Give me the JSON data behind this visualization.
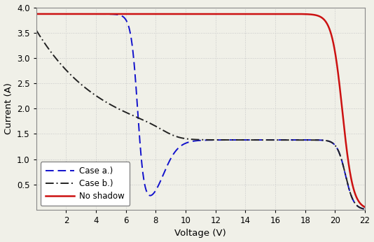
{
  "title": "",
  "xlabel": "Voltage (V)",
  "ylabel": "Current (A)",
  "xlim": [
    0,
    22
  ],
  "ylim": [
    0,
    4
  ],
  "xticks": [
    2,
    4,
    6,
    8,
    10,
    12,
    14,
    16,
    18,
    20,
    22
  ],
  "yticks": [
    0.5,
    1.0,
    1.5,
    2.0,
    2.5,
    3.0,
    3.5,
    4.0
  ],
  "grid_color": "#c8c8c8",
  "background_color": "#f0f0e8",
  "legend_labels": [
    "Case a.)",
    "Case b.)",
    "No shadow"
  ],
  "case_a_color": "#1111cc",
  "case_b_color": "#222222",
  "no_shadow_color": "#cc1111",
  "figsize": [
    5.34,
    3.46
  ],
  "dpi": 100
}
